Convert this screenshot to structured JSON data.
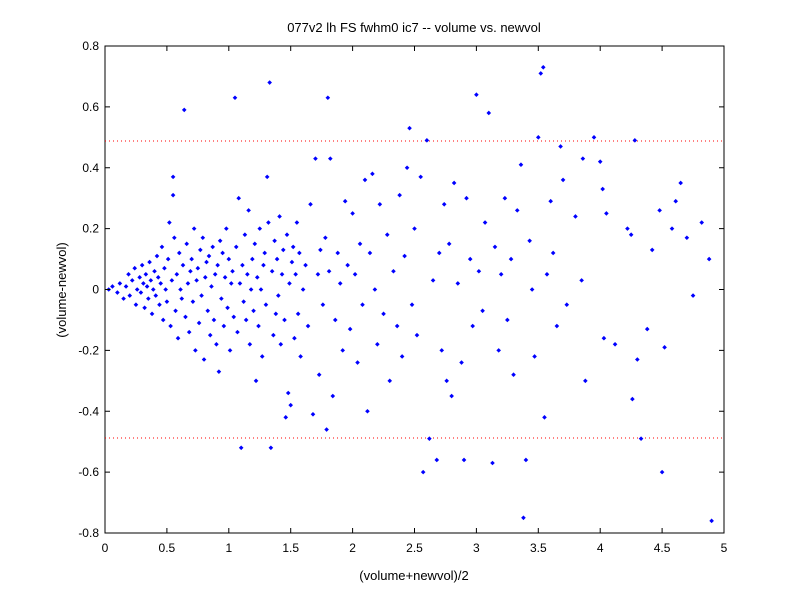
{
  "chart_data": {
    "type": "scatter",
    "title": "077v2 lh FS fwhm0 ic7 -- volume vs. newvol",
    "xlabel": "(volume+newvol)/2",
    "ylabel": "(volume-newvol)",
    "xlim": [
      0,
      5
    ],
    "ylim": [
      -0.8,
      0.8
    ],
    "xticks": [
      0,
      0.5,
      1,
      1.5,
      2,
      2.5,
      3,
      3.5,
      4,
      4.5,
      5
    ],
    "xtick_labels": [
      "0",
      "0.5",
      "1",
      "1.5",
      "2",
      "2.5",
      "3",
      "3.5",
      "4",
      "4.5",
      "5"
    ],
    "yticks": [
      -0.8,
      -0.6,
      -0.4,
      -0.2,
      0,
      0.2,
      0.4,
      0.6,
      0.8
    ],
    "ytick_labels": [
      "-0.8",
      "-0.6",
      "-0.4",
      "-0.2",
      "0",
      "0.2",
      "0.4",
      "0.6",
      "0.8"
    ],
    "grid": false,
    "legend": "none",
    "reference_lines": [
      {
        "y": 0.488,
        "style": "dotted",
        "color": "#ff0000"
      },
      {
        "y": -0.488,
        "style": "dotted",
        "color": "#ff0000"
      }
    ],
    "marker_color": "#0000ff",
    "points": [
      [
        0.03,
        0.0
      ],
      [
        0.06,
        0.01
      ],
      [
        0.1,
        -0.01
      ],
      [
        0.12,
        0.02
      ],
      [
        0.15,
        -0.03
      ],
      [
        0.17,
        0.01
      ],
      [
        0.19,
        0.05
      ],
      [
        0.2,
        -0.02
      ],
      [
        0.22,
        0.03
      ],
      [
        0.24,
        0.07
      ],
      [
        0.25,
        -0.05
      ],
      [
        0.26,
        0.0
      ],
      [
        0.28,
        0.04
      ],
      [
        0.29,
        -0.01
      ],
      [
        0.3,
        0.08
      ],
      [
        0.31,
        0.02
      ],
      [
        0.32,
        -0.06
      ],
      [
        0.33,
        0.05
      ],
      [
        0.34,
        0.01
      ],
      [
        0.35,
        -0.03
      ],
      [
        0.36,
        0.09
      ],
      [
        0.37,
        0.03
      ],
      [
        0.38,
        -0.08
      ],
      [
        0.39,
        0.0
      ],
      [
        0.4,
        0.06
      ],
      [
        0.41,
        -0.02
      ],
      [
        0.42,
        0.11
      ],
      [
        0.43,
        0.04
      ],
      [
        0.44,
        -0.05
      ],
      [
        0.45,
        0.02
      ],
      [
        0.46,
        0.14
      ],
      [
        0.47,
        -0.1
      ],
      [
        0.48,
        0.07
      ],
      [
        0.49,
        0.0
      ],
      [
        0.5,
        -0.04
      ],
      [
        0.51,
        0.1
      ],
      [
        0.52,
        0.22
      ],
      [
        0.53,
        -0.12
      ],
      [
        0.54,
        0.03
      ],
      [
        0.55,
        0.37
      ],
      [
        0.55,
        0.31
      ],
      [
        0.56,
        0.17
      ],
      [
        0.57,
        -0.07
      ],
      [
        0.58,
        0.05
      ],
      [
        0.59,
        -0.16
      ],
      [
        0.6,
        0.12
      ],
      [
        0.61,
        0.0
      ],
      [
        0.62,
        -0.03
      ],
      [
        0.63,
        0.08
      ],
      [
        0.64,
        0.59
      ],
      [
        0.65,
        -0.09
      ],
      [
        0.66,
        0.15
      ],
      [
        0.67,
        0.02
      ],
      [
        0.68,
        -0.14
      ],
      [
        0.69,
        0.06
      ],
      [
        0.7,
        0.1
      ],
      [
        0.71,
        -0.04
      ],
      [
        0.72,
        0.2
      ],
      [
        0.73,
        -0.2
      ],
      [
        0.74,
        0.03
      ],
      [
        0.75,
        0.07
      ],
      [
        0.76,
        -0.11
      ],
      [
        0.77,
        0.13
      ],
      [
        0.78,
        -0.02
      ],
      [
        0.79,
        0.17
      ],
      [
        0.8,
        -0.23
      ],
      [
        0.81,
        0.04
      ],
      [
        0.82,
        0.09
      ],
      [
        0.83,
        -0.07
      ],
      [
        0.84,
        0.11
      ],
      [
        0.85,
        -0.15
      ],
      [
        0.86,
        0.01
      ],
      [
        0.87,
        0.14
      ],
      [
        0.88,
        -0.1
      ],
      [
        0.89,
        0.05
      ],
      [
        0.9,
        -0.18
      ],
      [
        0.91,
        0.08
      ],
      [
        0.92,
        -0.27
      ],
      [
        0.93,
        0.16
      ],
      [
        0.94,
        -0.03
      ],
      [
        0.95,
        0.12
      ],
      [
        0.96,
        -0.12
      ],
      [
        0.97,
        0.04
      ],
      [
        0.98,
        0.2
      ],
      [
        0.99,
        -0.06
      ],
      [
        1.0,
        0.1
      ],
      [
        1.01,
        -0.2
      ],
      [
        1.02,
        0.02
      ],
      [
        1.03,
        0.06
      ],
      [
        1.04,
        -0.09
      ],
      [
        1.05,
        0.63
      ],
      [
        1.06,
        0.14
      ],
      [
        1.07,
        -0.14
      ],
      [
        1.08,
        0.3
      ],
      [
        1.09,
        0.02
      ],
      [
        1.1,
        -0.52
      ],
      [
        1.11,
        0.08
      ],
      [
        1.12,
        -0.04
      ],
      [
        1.13,
        0.18
      ],
      [
        1.14,
        -0.1
      ],
      [
        1.15,
        0.05
      ],
      [
        1.16,
        0.26
      ],
      [
        1.17,
        -0.18
      ],
      [
        1.18,
        0.0
      ],
      [
        1.19,
        0.1
      ],
      [
        1.2,
        -0.07
      ],
      [
        1.21,
        0.15
      ],
      [
        1.22,
        -0.3
      ],
      [
        1.23,
        0.04
      ],
      [
        1.24,
        -0.12
      ],
      [
        1.25,
        0.2
      ],
      [
        1.26,
        0.0
      ],
      [
        1.27,
        -0.22
      ],
      [
        1.28,
        0.08
      ],
      [
        1.29,
        0.12
      ],
      [
        1.3,
        -0.05
      ],
      [
        1.31,
        0.37
      ],
      [
        1.32,
        0.22
      ],
      [
        1.33,
        0.68
      ],
      [
        1.34,
        -0.52
      ],
      [
        1.35,
        0.06
      ],
      [
        1.36,
        -0.15
      ],
      [
        1.37,
        0.16
      ],
      [
        1.38,
        -0.08
      ],
      [
        1.39,
        0.1
      ],
      [
        1.4,
        -0.02
      ],
      [
        1.41,
        0.24
      ],
      [
        1.42,
        -0.18
      ],
      [
        1.43,
        0.05
      ],
      [
        1.44,
        0.13
      ],
      [
        1.45,
        -0.1
      ],
      [
        1.46,
        -0.42
      ],
      [
        1.47,
        0.18
      ],
      [
        1.48,
        -0.34
      ],
      [
        1.49,
        0.02
      ],
      [
        1.5,
        -0.38
      ],
      [
        1.51,
        0.09
      ],
      [
        1.52,
        0.14
      ],
      [
        1.53,
        -0.16
      ],
      [
        1.54,
        0.05
      ],
      [
        1.55,
        0.22
      ],
      [
        1.56,
        -0.08
      ],
      [
        1.57,
        0.12
      ],
      [
        1.58,
        -0.22
      ],
      [
        1.6,
        0.0
      ],
      [
        1.62,
        0.08
      ],
      [
        1.64,
        -0.12
      ],
      [
        1.66,
        0.28
      ],
      [
        1.68,
        -0.41
      ],
      [
        1.7,
        0.43
      ],
      [
        1.72,
        0.05
      ],
      [
        1.73,
        -0.28
      ],
      [
        1.74,
        0.13
      ],
      [
        1.76,
        -0.05
      ],
      [
        1.78,
        0.17
      ],
      [
        1.79,
        -0.46
      ],
      [
        1.8,
        0.63
      ],
      [
        1.81,
        0.06
      ],
      [
        1.82,
        0.43
      ],
      [
        1.84,
        -0.35
      ],
      [
        1.86,
        -0.1
      ],
      [
        1.88,
        0.12
      ],
      [
        1.9,
        0.02
      ],
      [
        1.92,
        -0.2
      ],
      [
        1.94,
        0.29
      ],
      [
        1.96,
        0.08
      ],
      [
        1.98,
        -0.13
      ],
      [
        2.0,
        0.25
      ],
      [
        2.02,
        0.05
      ],
      [
        2.04,
        -0.24
      ],
      [
        2.06,
        0.15
      ],
      [
        2.08,
        -0.05
      ],
      [
        2.1,
        0.36
      ],
      [
        2.12,
        -0.4
      ],
      [
        2.14,
        0.12
      ],
      [
        2.16,
        0.38
      ],
      [
        2.18,
        0.0
      ],
      [
        2.2,
        -0.18
      ],
      [
        2.22,
        0.28
      ],
      [
        2.25,
        -0.08
      ],
      [
        2.28,
        0.18
      ],
      [
        2.3,
        -0.3
      ],
      [
        2.33,
        0.06
      ],
      [
        2.36,
        -0.12
      ],
      [
        2.38,
        0.31
      ],
      [
        2.4,
        -0.22
      ],
      [
        2.42,
        0.11
      ],
      [
        2.44,
        0.4
      ],
      [
        2.46,
        0.53
      ],
      [
        2.48,
        -0.05
      ],
      [
        2.5,
        0.2
      ],
      [
        2.52,
        -0.15
      ],
      [
        2.55,
        0.37
      ],
      [
        2.57,
        -0.6
      ],
      [
        2.6,
        0.49
      ],
      [
        2.62,
        -0.49
      ],
      [
        2.65,
        0.03
      ],
      [
        2.68,
        -0.56
      ],
      [
        2.7,
        0.12
      ],
      [
        2.72,
        -0.2
      ],
      [
        2.74,
        0.28
      ],
      [
        2.76,
        -0.3
      ],
      [
        2.78,
        0.15
      ],
      [
        2.8,
        -0.35
      ],
      [
        2.82,
        0.35
      ],
      [
        2.85,
        0.02
      ],
      [
        2.88,
        -0.24
      ],
      [
        2.9,
        -0.56
      ],
      [
        2.92,
        0.3
      ],
      [
        2.95,
        0.1
      ],
      [
        2.97,
        -0.12
      ],
      [
        3.0,
        0.64
      ],
      [
        3.02,
        0.06
      ],
      [
        3.05,
        -0.07
      ],
      [
        3.07,
        0.22
      ],
      [
        3.1,
        0.58
      ],
      [
        3.13,
        -0.57
      ],
      [
        3.15,
        0.14
      ],
      [
        3.18,
        -0.2
      ],
      [
        3.2,
        0.05
      ],
      [
        3.23,
        0.3
      ],
      [
        3.25,
        -0.1
      ],
      [
        3.28,
        0.1
      ],
      [
        3.3,
        -0.28
      ],
      [
        3.33,
        0.26
      ],
      [
        3.36,
        0.41
      ],
      [
        3.38,
        -0.75
      ],
      [
        3.4,
        -0.56
      ],
      [
        3.43,
        0.16
      ],
      [
        3.45,
        0.0
      ],
      [
        3.47,
        -0.22
      ],
      [
        3.5,
        0.5
      ],
      [
        3.52,
        0.71
      ],
      [
        3.54,
        0.73
      ],
      [
        3.55,
        -0.42
      ],
      [
        3.57,
        0.05
      ],
      [
        3.6,
        0.29
      ],
      [
        3.62,
        0.12
      ],
      [
        3.65,
        -0.12
      ],
      [
        3.68,
        0.47
      ],
      [
        3.7,
        0.36
      ],
      [
        3.73,
        -0.05
      ],
      [
        3.8,
        0.24
      ],
      [
        3.85,
        0.03
      ],
      [
        3.86,
        0.43
      ],
      [
        3.88,
        -0.3
      ],
      [
        3.95,
        0.5
      ],
      [
        4.0,
        0.42
      ],
      [
        4.02,
        0.33
      ],
      [
        4.03,
        -0.16
      ],
      [
        4.05,
        0.25
      ],
      [
        4.12,
        -0.18
      ],
      [
        4.22,
        0.2
      ],
      [
        4.25,
        0.18
      ],
      [
        4.26,
        -0.36
      ],
      [
        4.28,
        0.49
      ],
      [
        4.3,
        -0.23
      ],
      [
        4.33,
        -0.49
      ],
      [
        4.38,
        -0.13
      ],
      [
        4.42,
        0.13
      ],
      [
        4.48,
        0.26
      ],
      [
        4.5,
        -0.6
      ],
      [
        4.52,
        -0.19
      ],
      [
        4.58,
        0.2
      ],
      [
        4.61,
        0.29
      ],
      [
        4.65,
        0.35
      ],
      [
        4.7,
        0.17
      ],
      [
        4.75,
        -0.02
      ],
      [
        4.82,
        0.22
      ],
      [
        4.88,
        0.1
      ],
      [
        4.9,
        -0.76
      ]
    ]
  }
}
